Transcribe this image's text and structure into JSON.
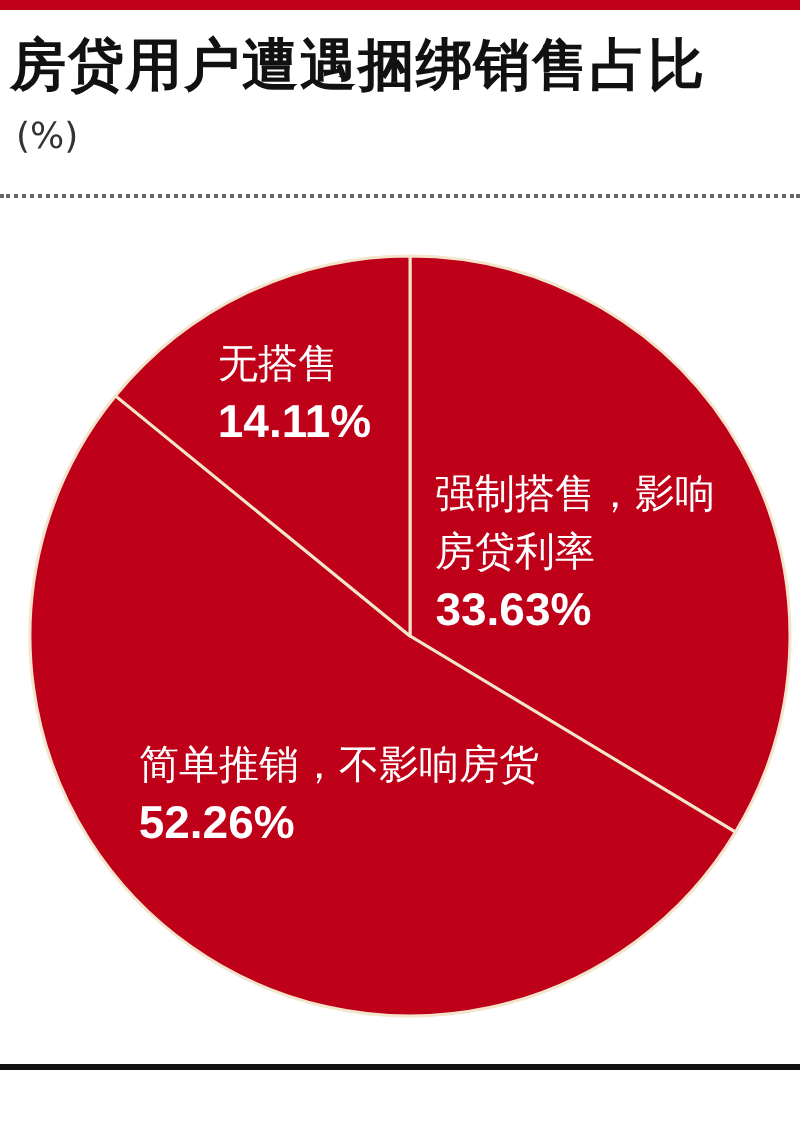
{
  "chart_data": {
    "type": "pie",
    "title": "房贷用户遭遇捆绑销售占比",
    "subtitle": "(%)",
    "categories": [
      "强制搭售，影响房贷利率",
      "简单推销，不影响房货",
      "无搭售"
    ],
    "values": [
      33.63,
      52.26,
      14.11
    ],
    "value_labels": [
      "33.63%",
      "52.26%",
      "14.11%"
    ],
    "colors": [
      "#bf0019",
      "#bf0019",
      "#bf0019"
    ]
  }
}
